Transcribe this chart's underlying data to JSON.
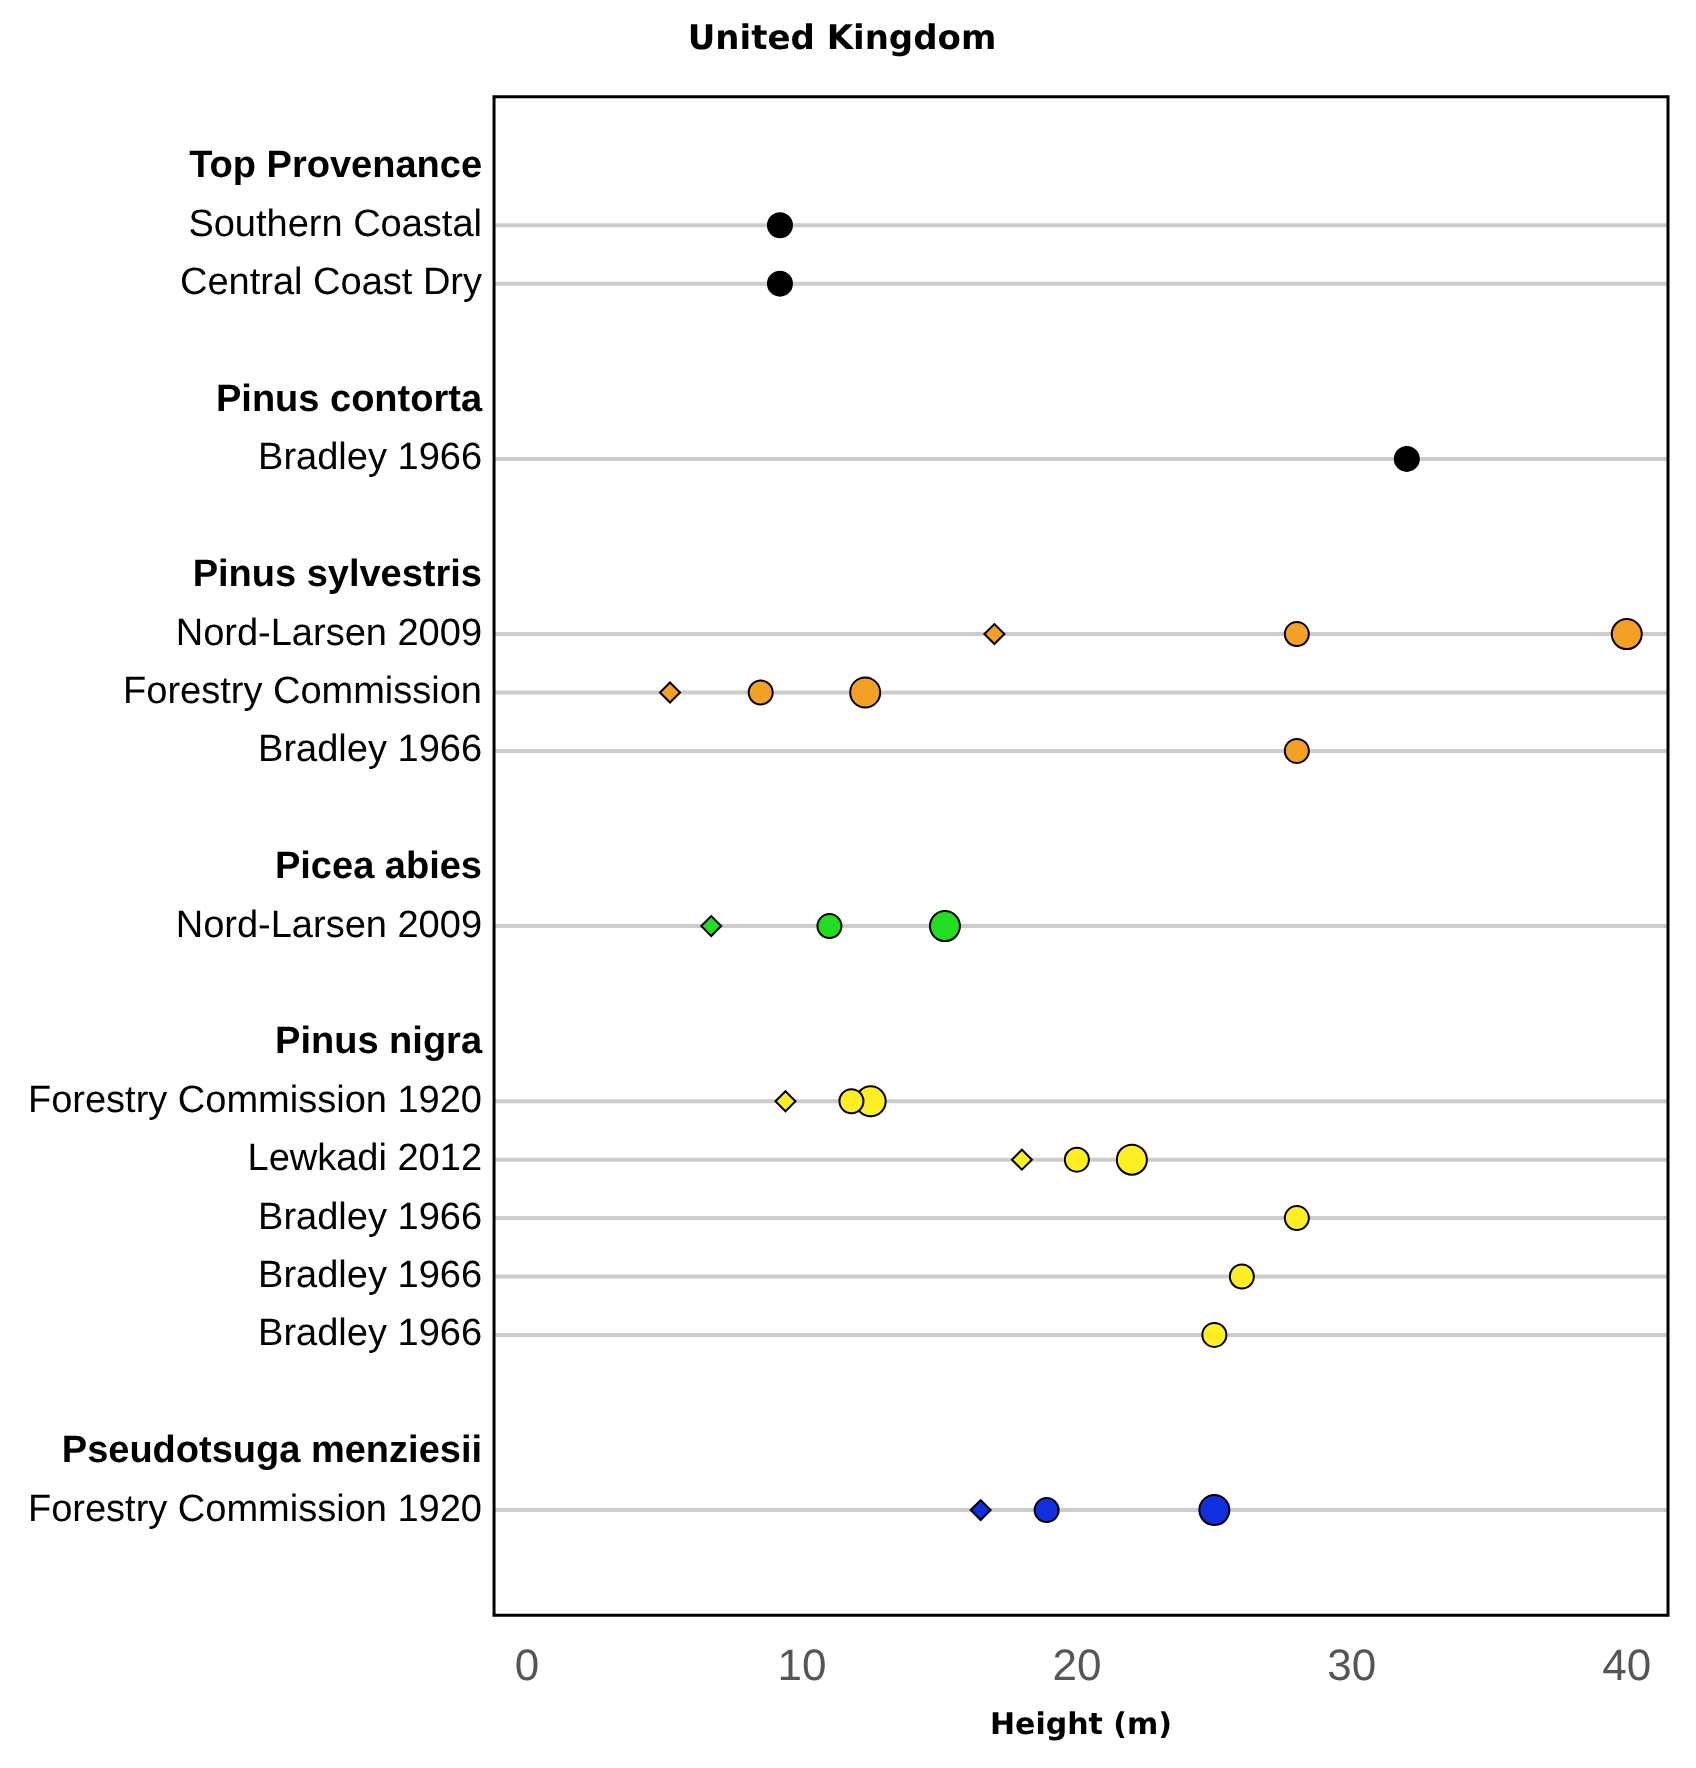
{
  "chart_data": {
    "type": "scatter",
    "orientation": "horizontal",
    "title": "United Kingdom",
    "xlabel": "Height (m)",
    "categories": [
      "Top Provenance",
      "Southern Coastal",
      "Central Coast Dry",
      null,
      "Pinus contorta",
      "Bradley 1966",
      null,
      "Pinus sylvestris",
      "Nord-Larsen 2009",
      "Forestry Commission",
      "Bradley 1966",
      null,
      "Picea abies",
      "Nord-Larsen 2009",
      null,
      "Pinus nigra",
      "Forestry Commission 1920",
      "Lewkadi 2012",
      "Bradley 1966",
      "Bradley 1966",
      "Bradley 1966",
      null,
      "Pseudotsuga menziesii",
      "Forestry Commission 1920"
    ],
    "series": [
      {
        "marker": "diamond",
        "values": [
          null,
          null,
          null,
          null,
          null,
          null,
          null,
          null,
          17,
          5.2,
          null,
          null,
          null,
          6.7,
          null,
          null,
          9.4,
          18,
          null,
          null,
          null,
          null,
          null,
          16.5
        ],
        "colors": [
          null,
          null,
          null,
          null,
          null,
          null,
          null,
          null,
          "#f4a024",
          "#f4a024",
          null,
          null,
          null,
          "#22dd22",
          null,
          null,
          "#ffee22",
          "#ffee22",
          null,
          null,
          null,
          null,
          null,
          "#1030e0"
        ]
      },
      {
        "marker": "circle",
        "values": [
          null,
          9.2,
          9.2,
          null,
          null,
          32,
          null,
          null,
          28,
          8.5,
          28,
          null,
          null,
          11,
          null,
          null,
          11.8,
          20,
          28,
          26,
          25,
          null,
          null,
          18.9
        ],
        "colors": [
          null,
          "#000000",
          "#000000",
          null,
          null,
          "#000000",
          null,
          null,
          "#f4a024",
          "#f4a024",
          "#f4a024",
          null,
          null,
          "#22dd22",
          null,
          null,
          "#ffee22",
          "#ffee22",
          "#ffee22",
          "#ffee22",
          "#ffee22",
          null,
          null,
          "#1030e0"
        ]
      },
      {
        "marker": "circle",
        "values": [
          null,
          null,
          null,
          null,
          null,
          null,
          null,
          null,
          40,
          12.3,
          null,
          null,
          null,
          15.2,
          null,
          null,
          12.5,
          22,
          null,
          null,
          null,
          null,
          null,
          25
        ],
        "colors": [
          null,
          null,
          null,
          null,
          null,
          null,
          null,
          null,
          "#f4a024",
          "#f4a024",
          null,
          null,
          null,
          "#22dd22",
          null,
          null,
          "#ffee22",
          "#ffee22",
          null,
          null,
          null,
          null,
          null,
          "#1030e0"
        ]
      }
    ],
    "xlim": [
      -1.2,
      41.5
    ],
    "xticks": [
      0,
      10,
      20,
      30,
      40
    ],
    "grid": "y",
    "legend": false
  }
}
